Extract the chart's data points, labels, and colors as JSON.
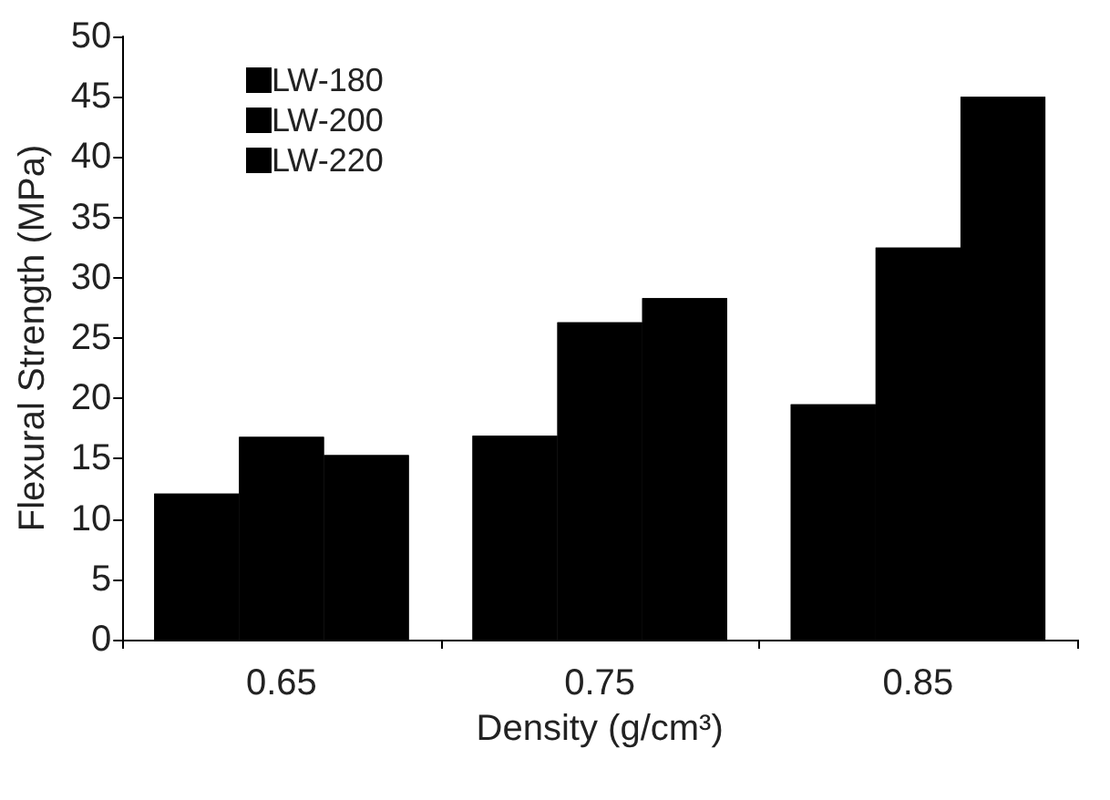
{
  "chart_data": {
    "type": "bar",
    "xlabel": "Density (g/cm³)",
    "ylabel": "Flexural Strength (MPa)",
    "categories": [
      "0.65",
      "0.75",
      "0.85"
    ],
    "series": [
      {
        "name": "LW-180",
        "color": "#000000",
        "values": [
          12.1,
          16.9,
          19.5
        ]
      },
      {
        "name": "LW-200",
        "color": "#000000",
        "values": [
          16.8,
          26.3,
          32.5
        ]
      },
      {
        "name": "LW-220",
        "color": "#000000",
        "values": [
          15.3,
          28.3,
          45.0
        ]
      }
    ],
    "ylim": [
      0,
      50
    ],
    "yticks": [
      0,
      5,
      10,
      15,
      20,
      25,
      30,
      35,
      40,
      45,
      50
    ],
    "grid": false,
    "legend": "top left"
  }
}
